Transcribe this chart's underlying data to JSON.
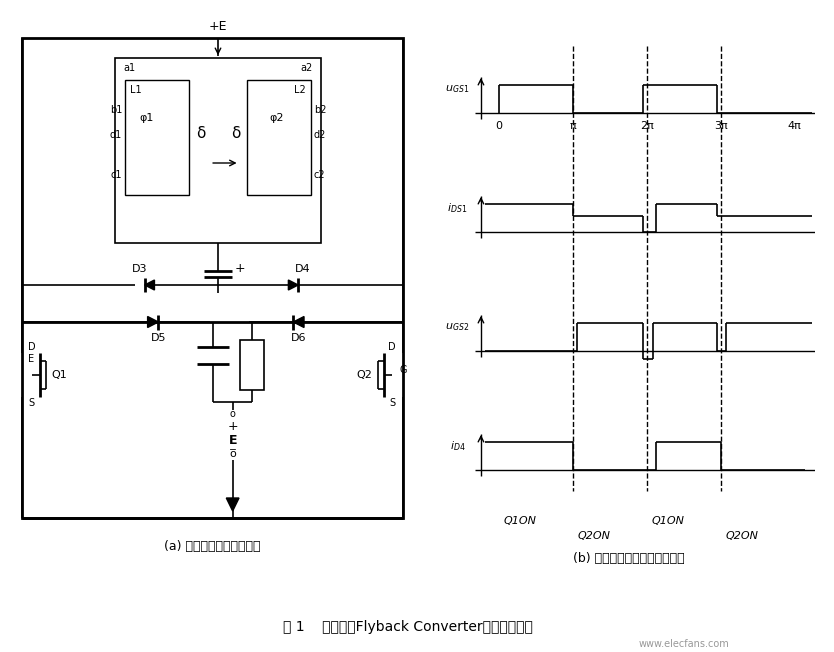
{
  "fig_width": 8.34,
  "fig_height": 6.52,
  "bg_color": "#ffffff",
  "title_text": "图 1    两路单管Flyback Converter功率合成框图",
  "caption_a": "(a) 主开关回路和输出回路",
  "caption_b": "(b) 控制波形和整流管输出波形",
  "watermark": "www.elecfans.com"
}
